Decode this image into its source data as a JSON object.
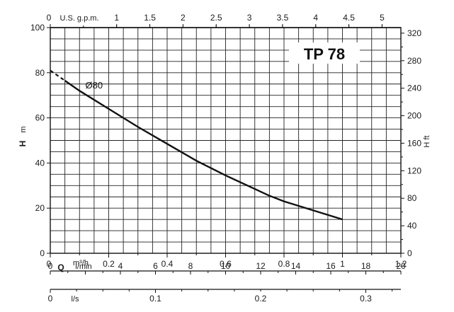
{
  "chart_data": {
    "type": "line",
    "title": "TP 78",
    "curve_label": "Ø80",
    "x": [
      0.0,
      0.1,
      0.2,
      0.3,
      0.4,
      0.5,
      0.6,
      0.7,
      0.75,
      0.8,
      0.9,
      1.0
    ],
    "y": [
      81,
      72,
      64,
      56,
      48.5,
      41,
      34.5,
      28.5,
      25.5,
      23,
      19,
      15
    ],
    "dashed_until_x": 0.05,
    "xlim": [
      0,
      1.2
    ],
    "ylim": [
      0,
      100
    ],
    "axes": {
      "bottom_q": {
        "symbol": "Q",
        "unit_html": "m³/h",
        "ticks": [
          "0.2",
          "0.4",
          "0.6",
          "0.8",
          "1",
          "1.2"
        ],
        "values": [
          0.2,
          0.4,
          0.6,
          0.8,
          1.0,
          1.2
        ],
        "zero": "0"
      },
      "bottom_lmin": {
        "unit": "l/min",
        "ticks": [
          "0",
          "4",
          "6",
          "8",
          "10",
          "12",
          "14",
          "16",
          "18",
          "20"
        ],
        "values": [
          0,
          4,
          6,
          8,
          10,
          12,
          14,
          16,
          18,
          20
        ]
      },
      "bottom_ls": {
        "unit": "l/s",
        "ticks": [
          "0",
          "0.1",
          "0.2",
          "0.3"
        ],
        "values": [
          0,
          0.1,
          0.2,
          0.3
        ]
      },
      "top_usgpm": {
        "unit": "U.S. g.p.m.",
        "ticks": [
          "0",
          "1",
          "1.5",
          "2",
          "2.5",
          "3",
          "3.5",
          "4",
          "4.5",
          "5"
        ],
        "values": [
          0,
          1,
          1.5,
          2,
          2.5,
          3,
          3.5,
          4,
          4.5,
          5
        ]
      },
      "left_h_m": {
        "symbol": "H",
        "unit": "m",
        "ticks": [
          "0",
          "20",
          "40",
          "60",
          "80",
          "100"
        ],
        "values": [
          0,
          20,
          40,
          60,
          80,
          100
        ]
      },
      "right_h_ft": {
        "unit": "H ft",
        "ticks": [
          "0",
          "40",
          "80",
          "120",
          "160",
          "200",
          "240",
          "280",
          "320"
        ],
        "values": [
          0,
          40,
          80,
          120,
          160,
          200,
          240,
          280,
          320
        ]
      }
    },
    "grid": true
  }
}
